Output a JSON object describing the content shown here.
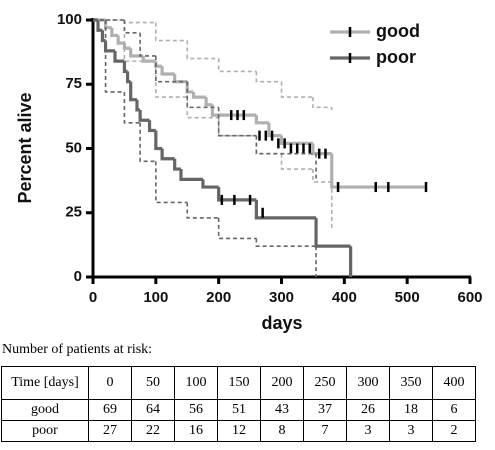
{
  "chart_data": {
    "type": "step",
    "ylabel": "Percent alive",
    "xlabel": "days",
    "xlim": [
      0,
      600
    ],
    "xticks": [
      0,
      100,
      200,
      300,
      400,
      500,
      600
    ],
    "ylim": [
      0,
      100
    ],
    "yticks": [
      0,
      25,
      50,
      75,
      100
    ],
    "legend": "upper right",
    "series": [
      {
        "name": "good",
        "color": "#b0b0b0",
        "x": [
          0,
          20,
          30,
          40,
          50,
          60,
          80,
          100,
          110,
          130,
          150,
          160,
          180,
          190,
          260,
          280,
          300,
          350,
          380,
          530
        ],
        "values": [
          100,
          97,
          94,
          91,
          89,
          86,
          84,
          82,
          79,
          76,
          72,
          70,
          67,
          63,
          60,
          55,
          52,
          48,
          35,
          35
        ],
        "ci_x": [
          0,
          50,
          100,
          150,
          200,
          260,
          300,
          350,
          380
        ],
        "ci_upper": [
          100,
          99,
          92,
          85,
          80,
          76,
          70,
          66,
          65
        ],
        "ci_lower": [
          100,
          84,
          70,
          62,
          55,
          48,
          42,
          37,
          18
        ],
        "censored_x": [
          220,
          230,
          240,
          265,
          275,
          285,
          295,
          305,
          315,
          325,
          335,
          345,
          360,
          370,
          390,
          450,
          470,
          530
        ],
        "censored_y": [
          63,
          63,
          63,
          55,
          55,
          55,
          52,
          52,
          50,
          50,
          50,
          50,
          48,
          48,
          35,
          35,
          35,
          35
        ]
      },
      {
        "name": "poor",
        "color": "#666666",
        "x": [
          0,
          8,
          15,
          20,
          35,
          50,
          55,
          60,
          70,
          75,
          90,
          100,
          110,
          130,
          140,
          175,
          200,
          260,
          355,
          410
        ],
        "values": [
          100,
          96,
          92,
          88,
          84,
          80,
          76,
          69,
          65,
          61,
          57,
          50,
          46,
          42,
          38,
          35,
          30,
          23,
          12,
          0
        ],
        "ci_x": [
          0,
          20,
          50,
          75,
          100,
          150,
          200,
          260,
          355
        ],
        "ci_upper": [
          100,
          100,
          95,
          86,
          76,
          66,
          55,
          48,
          38
        ],
        "ci_lower": [
          100,
          72,
          60,
          45,
          29,
          23,
          15,
          12,
          0
        ],
        "censored_x": [
          205,
          225,
          250,
          270
        ],
        "censored_y": [
          30,
          30,
          30,
          25
        ]
      }
    ]
  },
  "risk_table": {
    "title": "Number of patients at risk:",
    "header": [
      "Time [days]",
      "0",
      "50",
      "100",
      "150",
      "200",
      "250",
      "300",
      "350",
      "400"
    ],
    "rows": [
      [
        "good",
        "69",
        "64",
        "56",
        "51",
        "43",
        "37",
        "26",
        "18",
        "6"
      ],
      [
        "poor",
        "27",
        "22",
        "16",
        "12",
        "8",
        "7",
        "3",
        "3",
        "2"
      ]
    ]
  }
}
